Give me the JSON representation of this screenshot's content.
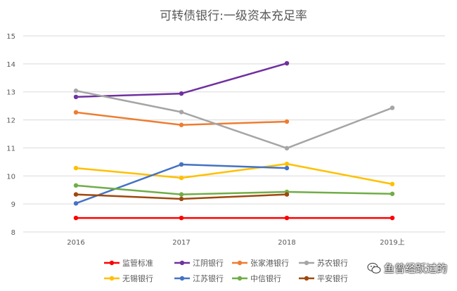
{
  "chart_data": {
    "type": "line",
    "title": "可转债银行:一级资本充足率",
    "categories": [
      "2016",
      "2017",
      "2018",
      "2019上"
    ],
    "ylim": [
      8,
      15
    ],
    "yticks": [
      8,
      9,
      10,
      11,
      12,
      13,
      14,
      15
    ],
    "grid": true,
    "legend_position": "bottom",
    "series": [
      {
        "name": "监管标准",
        "color": "#FF0000",
        "values": [
          8.5,
          8.5,
          8.5,
          8.5
        ]
      },
      {
        "name": "江阴银行",
        "color": "#7030A0",
        "values": [
          12.82,
          12.94,
          14.02,
          null
        ]
      },
      {
        "name": "张家港银行",
        "color": "#ED7D31",
        "values": [
          12.27,
          11.82,
          11.94,
          null
        ]
      },
      {
        "name": "苏农银行",
        "color": "#A5A5A5",
        "values": [
          13.04,
          12.28,
          10.99,
          12.43
        ]
      },
      {
        "name": "无锡银行",
        "color": "#FFC000",
        "values": [
          10.28,
          9.93,
          10.43,
          9.71
        ]
      },
      {
        "name": "江苏银行",
        "color": "#4472C4",
        "values": [
          9.02,
          10.41,
          10.28,
          null
        ]
      },
      {
        "name": "中信银行",
        "color": "#70AD47",
        "values": [
          9.66,
          9.34,
          9.43,
          9.36
        ]
      },
      {
        "name": "平安银行",
        "color": "#9E480E",
        "values": [
          9.34,
          9.18,
          9.34,
          null
        ]
      }
    ]
  },
  "watermark": {
    "text": "鱼曾经跃过的"
  }
}
